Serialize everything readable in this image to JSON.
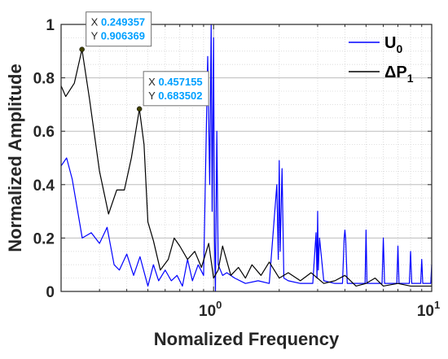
{
  "chart_data": {
    "type": "line",
    "xlabel": "Nomalized Frequency",
    "ylabel": "Normalized Amplitude",
    "xscale": "log",
    "xlim": [
      0.2,
      10
    ],
    "ylim": [
      0,
      1
    ],
    "grid": true,
    "minor_grid": true,
    "x_ticks": [
      {
        "value": 1,
        "base": "10",
        "exp": "0"
      },
      {
        "value": 10,
        "base": "10",
        "exp": "1"
      }
    ],
    "y_ticks": [
      {
        "value": 0,
        "label": "0"
      },
      {
        "value": 0.2,
        "label": "0.2"
      },
      {
        "value": 0.4,
        "label": "0.4"
      },
      {
        "value": 0.6,
        "label": "0.6"
      },
      {
        "value": 0.8,
        "label": "0.8"
      },
      {
        "value": 1,
        "label": "1"
      }
    ],
    "legend": {
      "location": "top-right",
      "entries": [
        {
          "text": "U",
          "sub": "0",
          "prefix": "",
          "color": "#0000ff"
        },
        {
          "text": "P",
          "sub": "1",
          "prefix": "Δ",
          "color": "#000000"
        }
      ]
    },
    "series": [
      {
        "color": "#0000ff",
        "x": [
          0.2,
          0.212,
          0.225,
          0.25,
          0.275,
          0.3,
          0.325,
          0.35,
          0.37,
          0.4,
          0.43,
          0.46,
          0.5,
          0.53,
          0.56,
          0.6,
          0.64,
          0.68,
          0.72,
          0.76,
          0.8,
          0.85,
          0.9,
          0.94,
          0.96,
          0.975,
          0.985,
          1.0,
          1.01,
          1.02,
          1.035,
          1.05,
          1.1,
          1.15,
          1.25,
          1.4,
          1.6,
          1.8,
          1.95,
          1.98,
          2.0,
          2.02,
          2.06,
          2.1,
          2.2,
          2.5,
          2.85,
          2.95,
          2.98,
          3.0,
          3.02,
          3.06,
          3.2,
          3.6,
          3.9,
          3.97,
          4.0,
          4.03,
          4.1,
          4.5,
          4.95,
          5.0,
          5.05,
          5.4,
          5.92,
          6.0,
          6.08,
          6.4,
          6.92,
          7.0,
          7.08,
          7.5,
          7.9,
          8.0,
          8.1,
          8.5,
          8.9,
          9.0,
          9.1,
          9.5,
          9.9,
          10.0
        ],
        "y": [
          0.47,
          0.5,
          0.42,
          0.2,
          0.22,
          0.18,
          0.24,
          0.1,
          0.08,
          0.14,
          0.06,
          0.13,
          0.02,
          0.1,
          0.04,
          0.08,
          0.04,
          0.06,
          0.02,
          0.12,
          0.04,
          0.1,
          0.06,
          0.88,
          0.4,
          1.0,
          0.3,
          0.95,
          0.2,
          0.0,
          0.6,
          0.1,
          0.06,
          0.07,
          0.05,
          0.03,
          0.04,
          0.03,
          0.4,
          0.12,
          0.49,
          0.15,
          0.46,
          0.05,
          0.04,
          0.03,
          0.03,
          0.22,
          0.05,
          0.3,
          0.08,
          0.2,
          0.04,
          0.03,
          0.03,
          0.2,
          0.23,
          0.2,
          0.03,
          0.03,
          0.03,
          0.23,
          0.03,
          0.03,
          0.03,
          0.2,
          0.03,
          0.03,
          0.03,
          0.17,
          0.03,
          0.03,
          0.03,
          0.15,
          0.03,
          0.03,
          0.03,
          0.12,
          0.03,
          0.03,
          0.03,
          0.1
        ]
      },
      {
        "color": "#000000",
        "x": [
          0.2,
          0.21,
          0.23,
          0.249357,
          0.27,
          0.3,
          0.33,
          0.36,
          0.39,
          0.42,
          0.457155,
          0.48,
          0.5,
          0.53,
          0.57,
          0.62,
          0.66,
          0.7,
          0.76,
          0.82,
          0.88,
          0.95,
          1.0,
          1.05,
          1.1,
          1.2,
          1.3,
          1.4,
          1.5,
          1.65,
          1.8,
          2.0,
          2.2,
          2.5,
          2.8,
          3.2,
          3.6,
          4.0,
          4.5,
          5.0,
          5.5,
          6.0,
          7.0,
          8.0,
          9.0,
          10.0
        ],
        "y": [
          0.77,
          0.73,
          0.78,
          0.906369,
          0.72,
          0.45,
          0.29,
          0.38,
          0.38,
          0.5,
          0.683502,
          0.55,
          0.26,
          0.19,
          0.08,
          0.12,
          0.2,
          0.17,
          0.12,
          0.15,
          0.09,
          0.18,
          0.05,
          0.08,
          0.17,
          0.06,
          0.09,
          0.05,
          0.1,
          0.06,
          0.11,
          0.05,
          0.07,
          0.04,
          0.07,
          0.03,
          0.04,
          0.06,
          0.02,
          0.03,
          0.05,
          0.02,
          0.03,
          0.02,
          0.02,
          0.02
        ]
      }
    ],
    "datatips": [
      {
        "x": 0.249357,
        "y": 0.906369,
        "x_label": "X",
        "x_value": "0.249357",
        "y_label": "Y",
        "y_value": "0.906369"
      },
      {
        "x": 0.457155,
        "y": 0.683502,
        "x_label": "X",
        "x_value": "0.457155",
        "y_label": "Y",
        "y_value": "0.683502"
      }
    ]
  }
}
